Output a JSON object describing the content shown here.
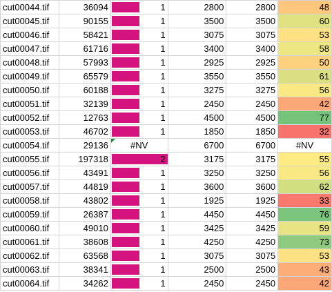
{
  "colors": {
    "bar": "#d5137f",
    "scale_low": "#f8696b",
    "scale_mid": "#ffeb84",
    "scale_high": "#63be7b",
    "nv_triangle": "#1a8f3a"
  },
  "bar_scale_max": 2,
  "score_scale": {
    "min": 30,
    "max": 80
  },
  "rows": [
    {
      "file": "cut00044.tif",
      "size": "36094",
      "count": "1",
      "count_fill": 0.5,
      "a": "2800",
      "b": "2800",
      "score": "48",
      "score_value": 48
    },
    {
      "file": "cut00045.tif",
      "size": "90155",
      "count": "1",
      "count_fill": 0.5,
      "a": "3500",
      "b": "3500",
      "score": "60",
      "score_value": 60
    },
    {
      "file": "cut00046.tif",
      "size": "58421",
      "count": "1",
      "count_fill": 0.5,
      "a": "3075",
      "b": "3075",
      "score": "53",
      "score_value": 53
    },
    {
      "file": "cut00047.tif",
      "size": "61716",
      "count": "1",
      "count_fill": 0.5,
      "a": "3400",
      "b": "3400",
      "score": "58",
      "score_value": 58
    },
    {
      "file": "cut00048.tif",
      "size": "57993",
      "count": "1",
      "count_fill": 0.5,
      "a": "2925",
      "b": "2925",
      "score": "50",
      "score_value": 50
    },
    {
      "file": "cut00049.tif",
      "size": "65579",
      "count": "1",
      "count_fill": 0.5,
      "a": "3550",
      "b": "3550",
      "score": "61",
      "score_value": 61
    },
    {
      "file": "cut00050.tif",
      "size": "60188",
      "count": "1",
      "count_fill": 0.5,
      "a": "3275",
      "b": "3275",
      "score": "56",
      "score_value": 56
    },
    {
      "file": "cut00051.tif",
      "size": "32139",
      "count": "1",
      "count_fill": 0.5,
      "a": "2450",
      "b": "2450",
      "score": "42",
      "score_value": 42
    },
    {
      "file": "cut00052.tif",
      "size": "12763",
      "count": "1",
      "count_fill": 0.5,
      "a": "4500",
      "b": "4500",
      "score": "77",
      "score_value": 77
    },
    {
      "file": "cut00053.tif",
      "size": "46702",
      "count": "1",
      "count_fill": 0.5,
      "a": "1850",
      "b": "1850",
      "score": "32",
      "score_value": 32
    },
    {
      "file": "cut00054.tif",
      "size": "29136",
      "count": "#NV",
      "count_fill": null,
      "a": "6700",
      "b": "6700",
      "score": "#NV",
      "score_value": null
    },
    {
      "file": "cut00055.tif",
      "size": "197318",
      "count": "2",
      "count_fill": 1.0,
      "a": "3175",
      "b": "3175",
      "score": "55",
      "score_value": 55
    },
    {
      "file": "cut00056.tif",
      "size": "43491",
      "count": "1",
      "count_fill": 0.5,
      "a": "3250",
      "b": "3250",
      "score": "56",
      "score_value": 56
    },
    {
      "file": "cut00057.tif",
      "size": "44819",
      "count": "1",
      "count_fill": 0.5,
      "a": "3600",
      "b": "3600",
      "score": "62",
      "score_value": 62
    },
    {
      "file": "cut00058.tif",
      "size": "43802",
      "count": "1",
      "count_fill": 0.5,
      "a": "1925",
      "b": "1925",
      "score": "33",
      "score_value": 33
    },
    {
      "file": "cut00059.tif",
      "size": "26387",
      "count": "1",
      "count_fill": 0.5,
      "a": "4450",
      "b": "4450",
      "score": "76",
      "score_value": 76
    },
    {
      "file": "cut00060.tif",
      "size": "49010",
      "count": "1",
      "count_fill": 0.5,
      "a": "3425",
      "b": "3425",
      "score": "59",
      "score_value": 59
    },
    {
      "file": "cut00061.tif",
      "size": "38608",
      "count": "1",
      "count_fill": 0.5,
      "a": "4250",
      "b": "4250",
      "score": "73",
      "score_value": 73
    },
    {
      "file": "cut00062.tif",
      "size": "63568",
      "count": "1",
      "count_fill": 0.5,
      "a": "3075",
      "b": "3075",
      "score": "53",
      "score_value": 53
    },
    {
      "file": "cut00063.tif",
      "size": "38341",
      "count": "1",
      "count_fill": 0.5,
      "a": "2500",
      "b": "2500",
      "score": "43",
      "score_value": 43
    },
    {
      "file": "cut00064.tif",
      "size": "34262",
      "count": "1",
      "count_fill": 0.5,
      "a": "2450",
      "b": "2450",
      "score": "42",
      "score_value": 42
    }
  ]
}
